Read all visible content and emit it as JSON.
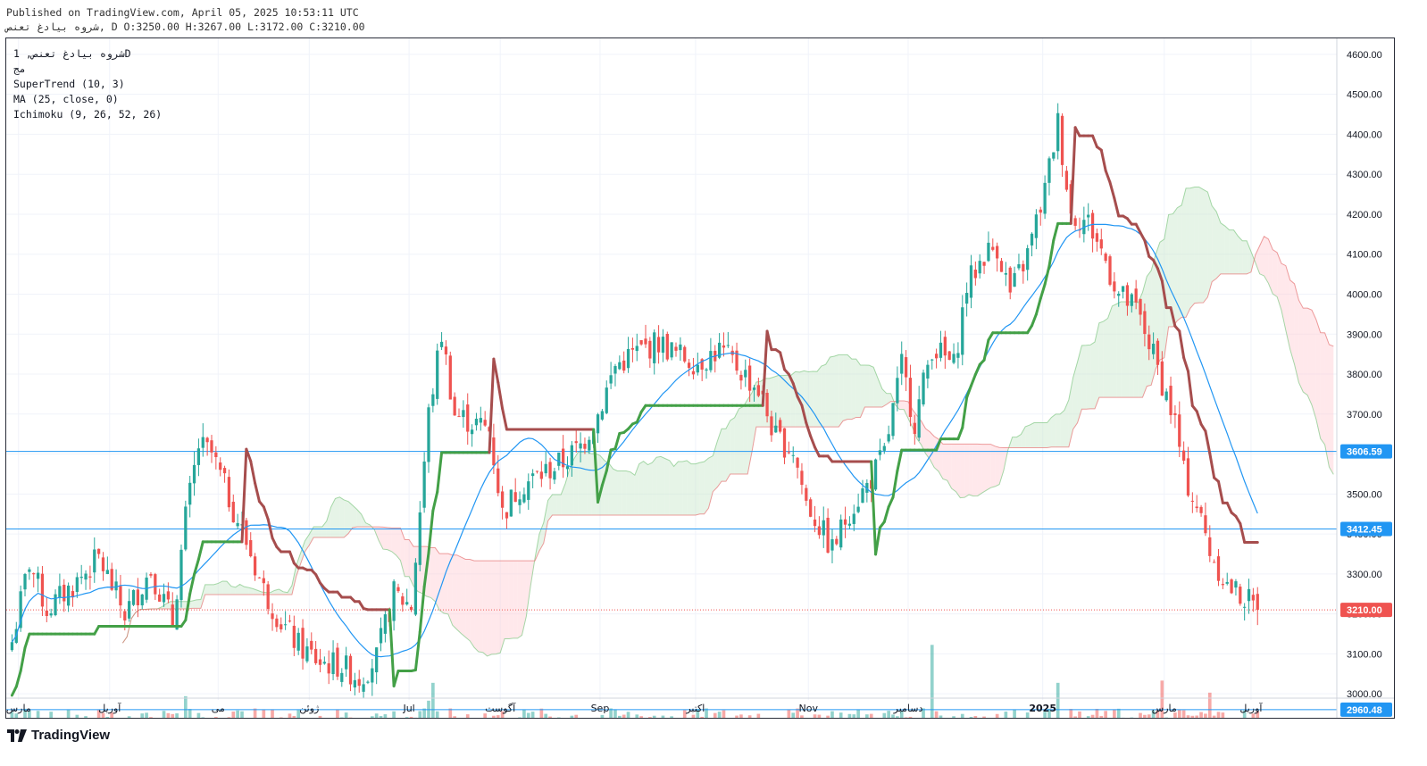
{
  "header": {
    "published": "Published on TradingView.com, April 05, 2025 10:53:11 UTC",
    "symbol_line": "شروه بیادغ تعنص, D O:3250.00 H:3267.00 L:3172.00 C:3210.00"
  },
  "legend": {
    "title": "شروه بیادغ تعنص, 1D",
    "subtitle": "مج",
    "supertrend": "SuperTrend (10, 3)",
    "ma": "MA (25, close, 0)",
    "ichimoku": "Ichimoku (9, 26, 52, 26)"
  },
  "brand": {
    "name": "TradingView"
  },
  "colors": {
    "up": "#26a69a",
    "down": "#ef5350",
    "supertrend_up": "#43a047",
    "supertrend_down": "#a64d4d",
    "ma": "#2196f3",
    "cloud_bull": "#c8e6c9",
    "cloud_bear": "#ffcdd2",
    "hline": "#2196f3",
    "last_price": "#ef5350"
  },
  "chart_data": {
    "type": "candlestick",
    "price_axis": {
      "ticks": [
        3000,
        3100,
        3200,
        3300,
        3400,
        3500,
        3600,
        3700,
        3800,
        3900,
        4000,
        4100,
        4200,
        4300,
        4400,
        4500,
        4600
      ],
      "range": [
        2940,
        4640
      ],
      "side": "right"
    },
    "time_axis": {
      "labels": [
        {
          "text": "مارس",
          "bar": 2
        },
        {
          "text": "آوریل",
          "bar": 23
        },
        {
          "text": "می",
          "bar": 48
        },
        {
          "text": "ژوئن",
          "bar": 69
        },
        {
          "text": "Jul",
          "bar": 92
        },
        {
          "text": "آگوست",
          "bar": 113
        },
        {
          "text": "Sep",
          "bar": 136
        },
        {
          "text": "اکتبر",
          "bar": 158
        },
        {
          "text": "Nov",
          "bar": 184
        },
        {
          "text": "دسامبر",
          "bar": 207
        },
        {
          "text": "2025",
          "bar": 238,
          "bold": true
        },
        {
          "text": "مارس",
          "bar": 266
        },
        {
          "text": "آوریل",
          "bar": 286
        }
      ],
      "bars_visible": 306
    },
    "horizontal_lines": [
      {
        "price": 3606.59,
        "label": "3606.59"
      },
      {
        "price": 3412.45,
        "label": "3412.45"
      },
      {
        "price": 2960.48,
        "label": "2960.48"
      }
    ],
    "last_price": {
      "price": 3210.0,
      "label": "3210.00"
    },
    "ohlc": {
      "open": 3250.0,
      "high": 3267.0,
      "low": 3172.0,
      "close": 3210.0
    },
    "close_path": [
      [
        0,
        3130
      ],
      [
        4,
        3330
      ],
      [
        8,
        3210
      ],
      [
        14,
        3270
      ],
      [
        20,
        3340
      ],
      [
        26,
        3200
      ],
      [
        32,
        3310
      ],
      [
        37,
        3180
      ],
      [
        40,
        3440
      ],
      [
        43,
        3620
      ],
      [
        46,
        3600
      ],
      [
        50,
        3490
      ],
      [
        54,
        3380
      ],
      [
        58,
        3260
      ],
      [
        62,
        3180
      ],
      [
        66,
        3120
      ],
      [
        71,
        3080
      ],
      [
        76,
        3070
      ],
      [
        80,
        3040
      ],
      [
        84,
        3090
      ],
      [
        88,
        3250
      ],
      [
        92,
        3220
      ],
      [
        96,
        3700
      ],
      [
        99,
        3900
      ],
      [
        102,
        3700
      ],
      [
        106,
        3680
      ],
      [
        110,
        3660
      ],
      [
        113,
        3450
      ],
      [
        117,
        3520
      ],
      [
        122,
        3550
      ],
      [
        127,
        3580
      ],
      [
        131,
        3620
      ],
      [
        135,
        3700
      ],
      [
        139,
        3820
      ],
      [
        143,
        3850
      ],
      [
        149,
        3880
      ],
      [
        153,
        3850
      ],
      [
        158,
        3830
      ],
      [
        163,
        3860
      ],
      [
        167,
        3820
      ],
      [
        172,
        3760
      ],
      [
        176,
        3640
      ],
      [
        180,
        3610
      ],
      [
        183,
        3480
      ],
      [
        186,
        3420
      ],
      [
        189,
        3360
      ],
      [
        193,
        3460
      ],
      [
        197,
        3520
      ],
      [
        201,
        3600
      ],
      [
        205,
        3820
      ],
      [
        208,
        3680
      ],
      [
        212,
        3870
      ],
      [
        217,
        3820
      ],
      [
        220,
        4020
      ],
      [
        224,
        4100
      ],
      [
        227,
        4120
      ],
      [
        230,
        4000
      ],
      [
        234,
        4100
      ],
      [
        238,
        4260
      ],
      [
        241,
        4430
      ],
      [
        244,
        4200
      ],
      [
        248,
        4180
      ],
      [
        251,
        4110
      ],
      [
        255,
        4000
      ],
      [
        259,
        3960
      ],
      [
        262,
        3880
      ],
      [
        265,
        3780
      ],
      [
        268,
        3680
      ],
      [
        270,
        3550
      ],
      [
        273,
        3470
      ],
      [
        276,
        3360
      ],
      [
        280,
        3270
      ],
      [
        284,
        3240
      ],
      [
        287,
        3210
      ]
    ],
    "volume_spikes": [
      {
        "bar": 40,
        "rel": 0.7
      },
      {
        "bar": 97,
        "rel": 1.0
      },
      {
        "bar": 96,
        "rel": 0.6
      },
      {
        "bar": 212,
        "rel": 1.85
      },
      {
        "bar": 241,
        "rel": 1.0
      },
      {
        "bar": 265,
        "rel": 1.05
      },
      {
        "bar": 276,
        "rel": 0.78
      }
    ]
  }
}
